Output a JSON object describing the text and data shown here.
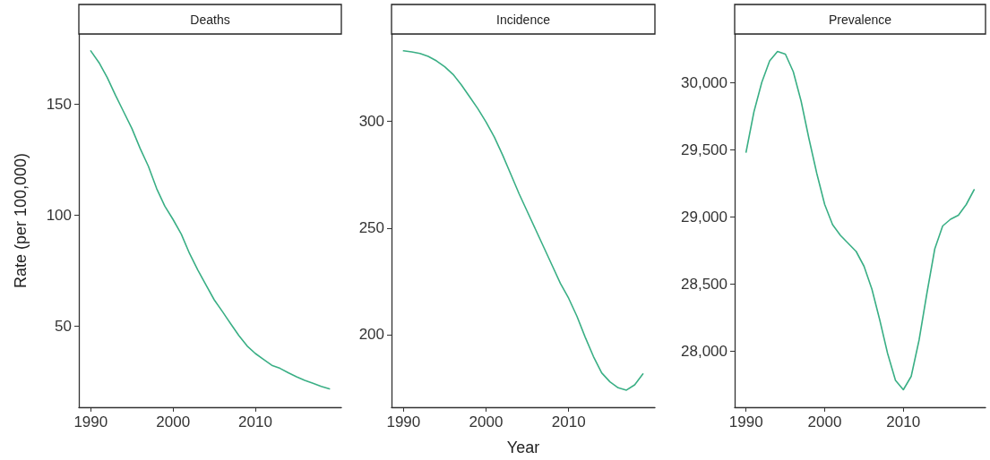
{
  "chart_data": [
    {
      "type": "line",
      "title": "Deaths",
      "ylabel": "Rate (per 100,000)",
      "x": [
        1990,
        1991,
        1992,
        1993,
        1994,
        1995,
        1996,
        1997,
        1998,
        1999,
        2000,
        2001,
        2002,
        2003,
        2004,
        2005,
        2006,
        2007,
        2008,
        2009,
        2010,
        2011,
        2012,
        2013,
        2014,
        2015,
        2016,
        2017,
        2018,
        2019
      ],
      "series": [
        {
          "color": "#3aaf85",
          "values": [
            174,
            168.7,
            162,
            154,
            146.5,
            139,
            130,
            122,
            112,
            104,
            98,
            91.4,
            82.7,
            75.3,
            68.5,
            61.8,
            56.5,
            51,
            45.7,
            41,
            37.6,
            34.9,
            32.3,
            30.9,
            28.9,
            27.1,
            25.5,
            24.2,
            22.8,
            21.7
          ]
        }
      ],
      "xlim": [
        1988.55,
        2020.45
      ],
      "xticks": [
        1990,
        2000,
        2010
      ],
      "ylim": [
        13.4,
        181.6
      ],
      "yticks": [
        50,
        100,
        150
      ],
      "grid": false,
      "marker": "none",
      "line_style": "solid"
    },
    {
      "type": "line",
      "title": "Incidence",
      "xlabel": "Year",
      "x": [
        1990,
        1991,
        1992,
        1993,
        1994,
        1995,
        1996,
        1997,
        1998,
        1999,
        2000,
        2001,
        2002,
        2003,
        2004,
        2005,
        2006,
        2007,
        2008,
        2009,
        2010,
        2011,
        2012,
        2013,
        2014,
        2015,
        2016,
        2017,
        2018,
        2019
      ],
      "series": [
        {
          "color": "#3aaf85",
          "values": [
            333.1,
            332.6,
            331.9,
            330.5,
            328.4,
            325.6,
            322.1,
            317.2,
            311.6,
            306,
            299.7,
            292.7,
            284.3,
            275.2,
            266.1,
            257.7,
            249.3,
            240.9,
            232.5,
            224.1,
            217.1,
            208.7,
            198.9,
            189.8,
            182.1,
            177.9,
            175.1,
            174,
            176.5,
            181.6
          ]
        }
      ],
      "xlim": [
        1988.55,
        2020.45
      ],
      "xticks": [
        1990,
        2000,
        2010
      ],
      "ylim": [
        166,
        341
      ],
      "yticks": [
        200,
        250,
        300
      ],
      "grid": false,
      "marker": "none",
      "line_style": "solid"
    },
    {
      "type": "line",
      "title": "Prevalence",
      "x": [
        1990,
        1991,
        1992,
        1993,
        1994,
        1995,
        1996,
        1997,
        1998,
        1999,
        2000,
        2001,
        2002,
        2003,
        2004,
        2005,
        2006,
        2007,
        2008,
        2009,
        2010,
        2011,
        2012,
        2013,
        2014,
        2015,
        2016,
        2017,
        2018,
        2019
      ],
      "series": [
        {
          "color": "#3aaf85",
          "values": [
            29480,
            29780,
            30000,
            30160,
            30230,
            30210,
            30080,
            29860,
            29580,
            29320,
            29090,
            28940,
            28860,
            28800,
            28740,
            28630,
            28460,
            28230,
            27980,
            27780,
            27710,
            27810,
            28080,
            28430,
            28760,
            28930,
            28980,
            29010,
            29090,
            29200
          ]
        }
      ],
      "xlim": [
        1988.55,
        2020.45
      ],
      "xticks": [
        1990,
        2000,
        2010
      ],
      "ylim": [
        27580,
        30360
      ],
      "yticks": [
        {
          "value": 28000,
          "label": "28,000"
        },
        {
          "value": 28500,
          "label": "28,500"
        },
        {
          "value": 29000,
          "label": "29,000"
        },
        {
          "value": 29500,
          "label": "29,500"
        },
        {
          "value": 30000,
          "label": "30,000"
        }
      ],
      "grid": false,
      "marker": "none",
      "line_style": "solid"
    }
  ]
}
